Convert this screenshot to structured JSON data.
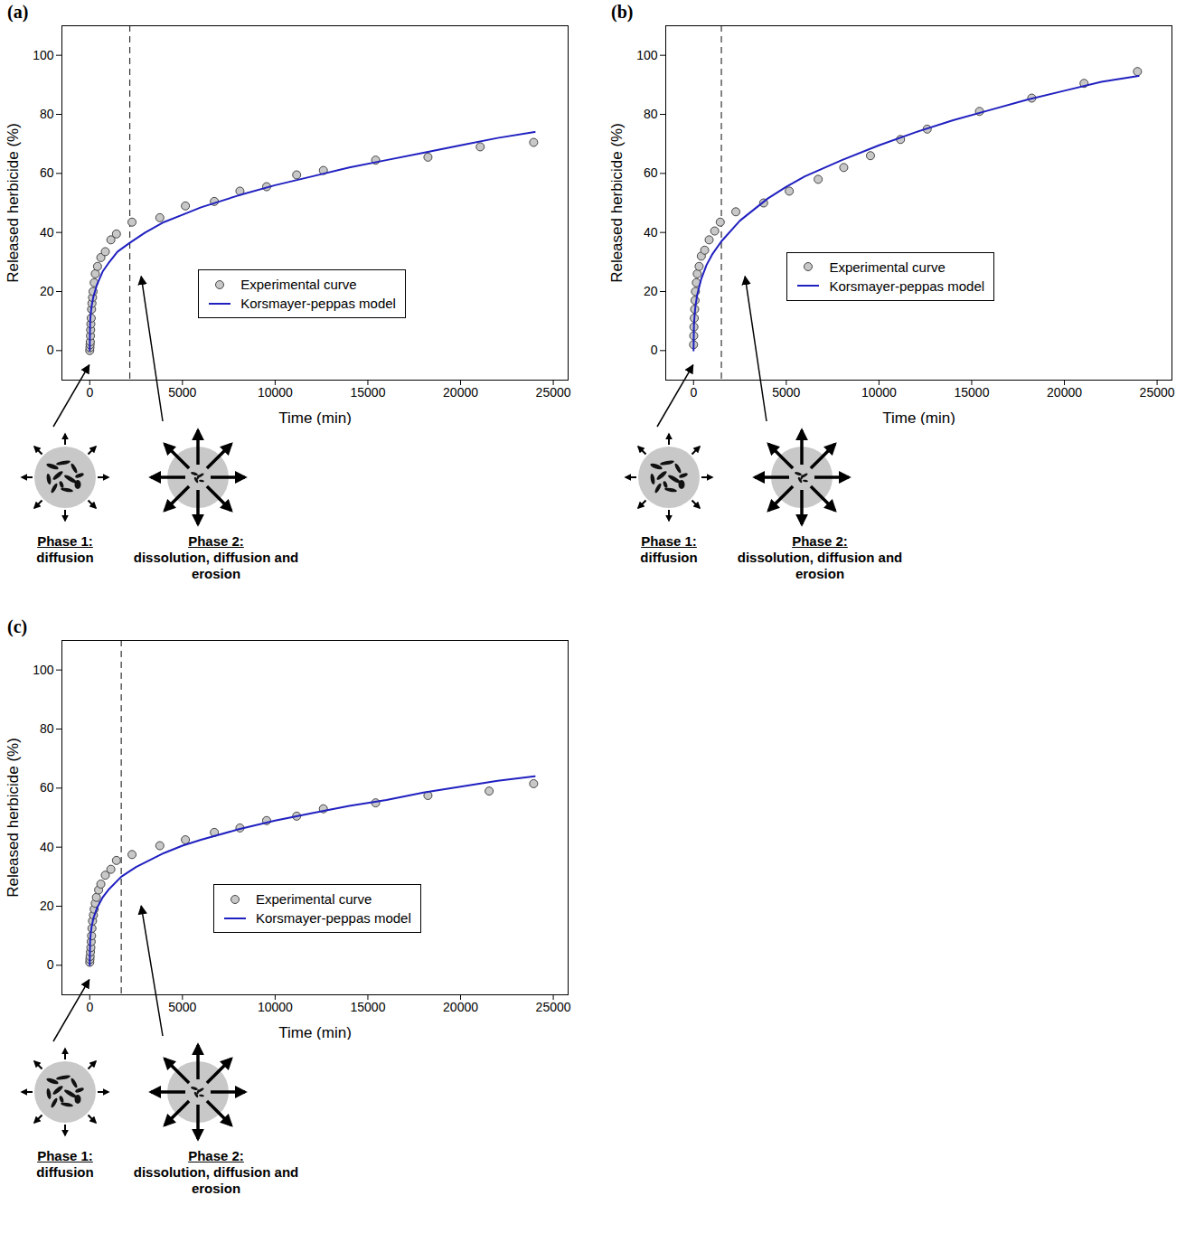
{
  "chart_data": [
    {
      "panel": "(a)",
      "type": "scatter",
      "x_label": "Time (min)",
      "y_label": "Released herbicide (%)",
      "xlim": [
        -1500,
        25800
      ],
      "ylim": [
        -10,
        110
      ],
      "xticks": [
        0,
        5000,
        10000,
        15000,
        20000,
        25000
      ],
      "yticks": [
        0,
        20,
        40,
        60,
        80,
        100
      ],
      "legend": "center",
      "phase_boundary": 2160,
      "series": [
        {
          "name": "Experimental curve",
          "type": "scatter",
          "marker": "circle",
          "color": "#c8c8c8",
          "x": [
            0,
            10,
            20,
            30,
            40,
            50,
            60,
            80,
            100,
            120,
            150,
            180,
            240,
            300,
            420,
            600,
            840,
            1140,
            1440,
            2280,
            3780,
            5160,
            6720,
            8100,
            9540,
            11160,
            12600,
            15420,
            18240,
            21060,
            23940
          ],
          "values": [
            0,
            1,
            2,
            3,
            5,
            7,
            9,
            11,
            14,
            16,
            18,
            20,
            23,
            26,
            28.5,
            31.5,
            33.5,
            37.5,
            39.5,
            43.5,
            45,
            49,
            50.5,
            54,
            55.5,
            59.5,
            61,
            64.5,
            65.5,
            69,
            70.5
          ]
        },
        {
          "name": "Korsmayer-peppas model",
          "type": "line",
          "color": "#2020c0",
          "x": [
            0,
            20,
            50,
            100,
            200,
            400,
            700,
            1000,
            1500,
            2160,
            3000,
            4000,
            5000,
            6000,
            8000,
            10000,
            12000,
            14000,
            16000,
            18000,
            20000,
            22000,
            24000
          ],
          "values": [
            0,
            9.5,
            12.4,
            15,
            18.3,
            22.5,
            26.8,
            29.5,
            33.5,
            36.5,
            40,
            43.5,
            46,
            48.5,
            52.5,
            56,
            59,
            62,
            64.5,
            67,
            69.5,
            72,
            74
          ]
        }
      ],
      "annotations": [
        {
          "title": "Phase 1:",
          "text": "diffusion",
          "arrow_to": [
            0,
            -5
          ]
        },
        {
          "title": "Phase 2:",
          "text": "dissolution, diffusion and erosion",
          "arrow_to": [
            2800,
            25
          ]
        }
      ]
    },
    {
      "panel": "(b)",
      "type": "scatter",
      "x_label": "Time (min)",
      "y_label": "Released herbicide (%)",
      "xlim": [
        -1500,
        25800
      ],
      "ylim": [
        -10,
        110
      ],
      "xticks": [
        0,
        5000,
        10000,
        15000,
        20000,
        25000
      ],
      "yticks": [
        0,
        20,
        40,
        60,
        80,
        100
      ],
      "legend": "center",
      "phase_boundary": 1500,
      "series": [
        {
          "name": "Experimental curve",
          "type": "scatter",
          "marker": "circle",
          "color": "#c8c8c8",
          "x": [
            0,
            10,
            20,
            40,
            60,
            80,
            100,
            150,
            200,
            300,
            420,
            600,
            840,
            1140,
            1440,
            2280,
            3780,
            5160,
            6720,
            8100,
            9540,
            11160,
            12600,
            15420,
            18240,
            21060,
            23940
          ],
          "values": [
            2,
            5,
            8,
            11,
            14,
            17,
            20,
            23,
            26,
            28.5,
            32,
            34,
            37.5,
            40.5,
            43.5,
            47,
            50,
            54,
            58,
            62,
            66,
            71.5,
            75,
            81,
            85.5,
            90.5,
            94.5
          ]
        },
        {
          "name": "Korsmayer-peppas model",
          "type": "line",
          "color": "#2020c0",
          "x": [
            0,
            20,
            50,
            100,
            200,
            400,
            700,
            1000,
            1500,
            2500,
            4000,
            5000,
            6000,
            8000,
            10000,
            12000,
            14000,
            16000,
            18000,
            20000,
            22000,
            24000
          ],
          "values": [
            0,
            8.5,
            11.5,
            15,
            19,
            24,
            29,
            32.5,
            37,
            44,
            51.5,
            55.5,
            59,
            64.5,
            69.5,
            74,
            78,
            81.5,
            85,
            88,
            91,
            93
          ]
        }
      ],
      "annotations": [
        {
          "title": "Phase 1:",
          "text": "diffusion",
          "arrow_to": [
            0,
            -5
          ]
        },
        {
          "title": "Phase 2:",
          "text": "dissolution, diffusion and erosion",
          "arrow_to": [
            2800,
            25
          ]
        }
      ]
    },
    {
      "panel": "(c)",
      "type": "scatter",
      "x_label": "Time (min)",
      "y_label": "Released herbicide (%)",
      "xlim": [
        -1500,
        25800
      ],
      "ylim": [
        -10,
        110
      ],
      "xticks": [
        0,
        5000,
        10000,
        15000,
        20000,
        25000
      ],
      "yticks": [
        0,
        20,
        40,
        60,
        80,
        100
      ],
      "legend": "center",
      "phase_boundary": 1700,
      "series": [
        {
          "name": "Experimental curve",
          "type": "scatter",
          "marker": "circle",
          "color": "#c8c8c8",
          "x": [
            0,
            10,
            20,
            40,
            60,
            80,
            100,
            120,
            150,
            200,
            240,
            300,
            360,
            480,
            600,
            840,
            1140,
            1440,
            2280,
            3780,
            5160,
            6720,
            8100,
            9540,
            11160,
            12600,
            15420,
            18240,
            21540,
            23940
          ],
          "values": [
            1,
            2,
            3,
            4.5,
            6,
            8,
            10,
            12.5,
            15,
            17,
            19,
            21,
            23,
            25.5,
            27.5,
            30.5,
            32.5,
            35.5,
            37.5,
            40.5,
            42.5,
            45,
            46.5,
            49,
            50.5,
            53,
            55,
            57.5,
            59,
            61.5
          ]
        },
        {
          "name": "Korsmayer-peppas model",
          "type": "line",
          "color": "#2020c0",
          "x": [
            0,
            20,
            50,
            100,
            200,
            400,
            700,
            1000,
            1700,
            2500,
            4000,
            5000,
            6000,
            8000,
            10000,
            12000,
            14000,
            16000,
            18000,
            20000,
            22000,
            24000
          ],
          "values": [
            0,
            8,
            10.5,
            13,
            16,
            19.5,
            23,
            25.5,
            30,
            33.3,
            38,
            40.5,
            42.5,
            46,
            49,
            51.5,
            54,
            56,
            58.5,
            60.5,
            62.5,
            64
          ]
        }
      ],
      "annotations": [
        {
          "title": "Phase 1:",
          "text": "diffusion",
          "arrow_to": [
            0,
            -5
          ]
        },
        {
          "title": "Phase 2:",
          "text": "dissolution, diffusion and erosion",
          "arrow_to": [
            2800,
            20
          ]
        }
      ]
    }
  ]
}
